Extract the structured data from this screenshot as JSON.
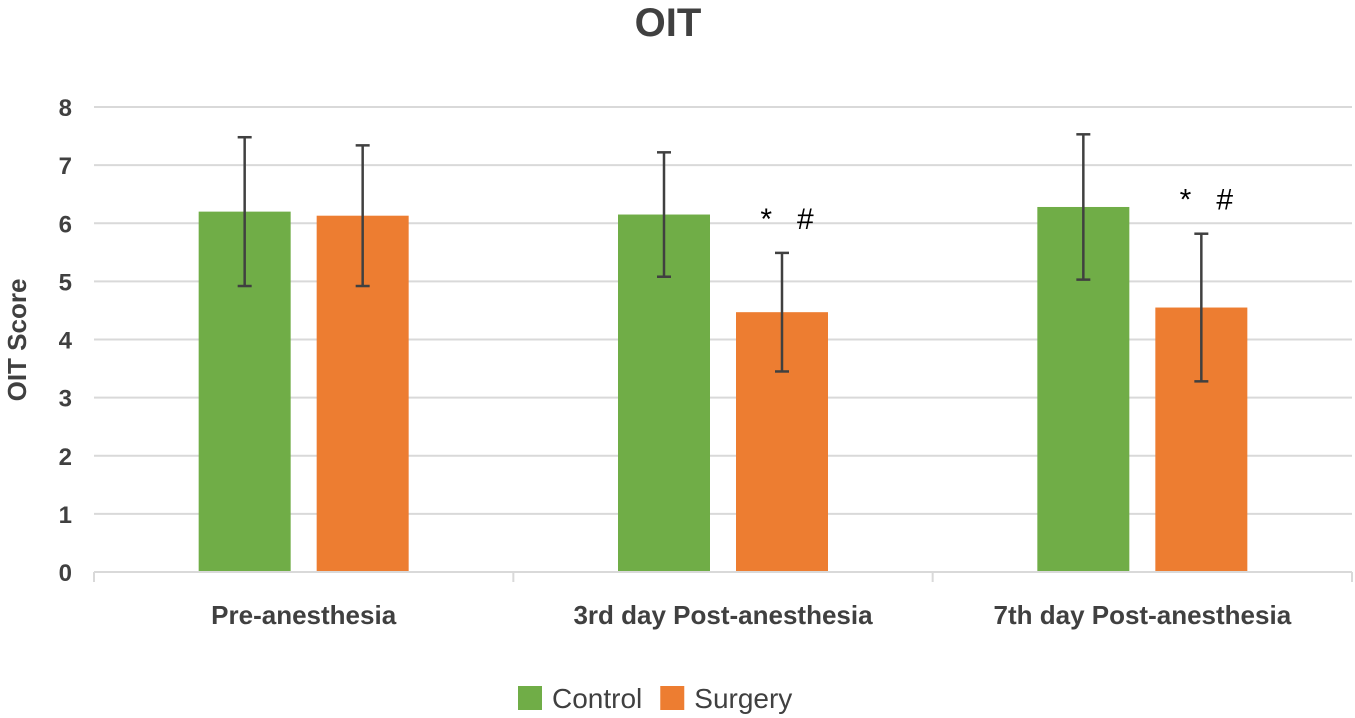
{
  "chart_data": {
    "type": "bar",
    "title": "OIT",
    "xlabel": "",
    "ylabel": "OIT Score",
    "ylim": [
      0,
      8
    ],
    "yticks": [
      0,
      1,
      2,
      3,
      4,
      5,
      6,
      7,
      8
    ],
    "grid": true,
    "legend_position": "bottom",
    "categories": [
      "Pre-anesthesia",
      "3rd day Post-anesthesia",
      "7th day Post-anesthesia"
    ],
    "series": [
      {
        "name": "Control",
        "color": "#70ad47",
        "values": [
          6.2,
          6.15,
          6.28
        ],
        "error": [
          1.28,
          1.07,
          1.25
        ],
        "annotations": [
          "",
          "",
          ""
        ]
      },
      {
        "name": "Surgery",
        "color": "#ed7d31",
        "values": [
          6.13,
          4.47,
          4.55
        ],
        "error": [
          1.21,
          1.02,
          1.27
        ],
        "annotations": [
          "",
          "*   #",
          "*   #"
        ]
      }
    ]
  }
}
